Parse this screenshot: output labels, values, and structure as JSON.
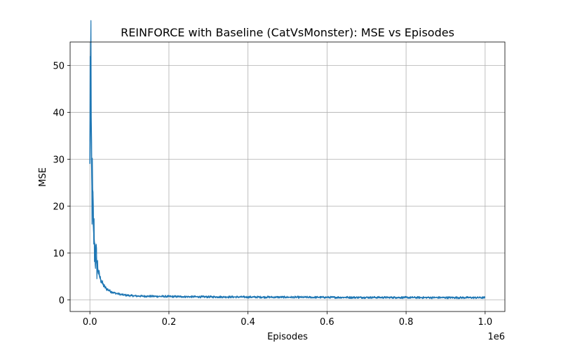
{
  "chart_data": {
    "type": "line",
    "title": "REINFORCE with Baseline (CatVsMonster): MSE vs Episodes",
    "xlabel": "Episodes",
    "ylabel": "MSE",
    "x_offset_label": "1e6",
    "xlim": [
      -0.05,
      1.05
    ],
    "ylim": [
      -2.5,
      55
    ],
    "x_ticks": [
      0.0,
      0.2,
      0.4,
      0.6,
      0.8,
      1.0
    ],
    "x_tick_labels": [
      "0.0",
      "0.2",
      "0.4",
      "0.6",
      "0.8",
      "1.0"
    ],
    "y_ticks": [
      0,
      10,
      20,
      30,
      40,
      50
    ],
    "y_tick_labels": [
      "0",
      "10",
      "20",
      "30",
      "40",
      "50"
    ],
    "grid": true,
    "series": [
      {
        "color": "#1f77b4",
        "x": [
          0.0,
          0.001,
          0.002,
          0.003,
          0.004,
          0.005,
          0.006,
          0.008,
          0.01,
          0.012,
          0.015,
          0.018,
          0.02,
          0.025,
          0.03,
          0.035,
          0.04,
          0.05,
          0.06,
          0.07,
          0.08,
          0.1,
          0.12,
          0.15,
          0.2,
          0.25,
          0.3,
          0.4,
          0.5,
          0.6,
          0.7,
          0.8,
          0.9,
          1.0
        ],
        "values": [
          29.0,
          52.0,
          45.0,
          36.0,
          30.0,
          26.0,
          22.0,
          17.0,
          14.0,
          11.5,
          9.0,
          7.5,
          6.5,
          4.8,
          3.8,
          3.0,
          2.5,
          1.9,
          1.5,
          1.3,
          1.1,
          0.9,
          0.8,
          0.75,
          0.7,
          0.65,
          0.62,
          0.58,
          0.55,
          0.52,
          0.5,
          0.48,
          0.46,
          0.45
        ]
      }
    ]
  }
}
